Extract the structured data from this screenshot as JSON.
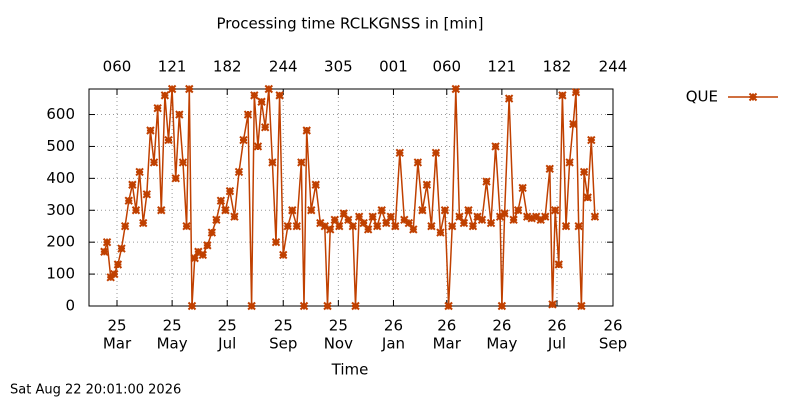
{
  "chart_data": {
    "type": "line",
    "title": "Processing time RCLKGNSS in [min]",
    "x_label": "Time",
    "timestamp": "Sat Aug 22 20:01:00 2026",
    "legend": "top-right",
    "grid": true,
    "xlim": [
      "2025-01-29",
      "2026-09-01"
    ],
    "ylim": [
      0,
      680
    ],
    "yticks": [
      0,
      100,
      200,
      300,
      400,
      500,
      600
    ],
    "xticks": [
      {
        "value": "2025-03-01",
        "label": [
          "25",
          "Mar"
        ]
      },
      {
        "value": "2025-05-01",
        "label": [
          "25",
          "May"
        ]
      },
      {
        "value": "2025-07-01",
        "label": [
          "25",
          "Jul"
        ]
      },
      {
        "value": "2025-09-01",
        "label": [
          "25",
          "Sep"
        ]
      },
      {
        "value": "2025-11-01",
        "label": [
          "25",
          "Nov"
        ]
      },
      {
        "value": "2026-01-01",
        "label": [
          "26",
          "Jan"
        ]
      },
      {
        "value": "2026-03-01",
        "label": [
          "26",
          "Mar"
        ]
      },
      {
        "value": "2026-05-01",
        "label": [
          "26",
          "May"
        ]
      },
      {
        "value": "2026-07-01",
        "label": [
          "26",
          "Jul"
        ]
      },
      {
        "value": "2026-09-01",
        "label": [
          "26",
          "Sep"
        ]
      }
    ],
    "x2ticks": [
      {
        "value": "2025-03-01",
        "label": "060"
      },
      {
        "value": "2025-05-01",
        "label": "121"
      },
      {
        "value": "2025-07-01",
        "label": "182"
      },
      {
        "value": "2025-09-01",
        "label": "244"
      },
      {
        "value": "2025-11-01",
        "label": "305"
      },
      {
        "value": "2026-01-01",
        "label": "001"
      },
      {
        "value": "2026-03-01",
        "label": "060"
      },
      {
        "value": "2026-05-01",
        "label": "121"
      },
      {
        "value": "2026-07-01",
        "label": "182"
      },
      {
        "value": "2026-09-01",
        "label": "244"
      }
    ],
    "x": [
      "2025-02-15",
      "2025-02-18",
      "2025-02-22",
      "2025-02-26",
      "2025-03-02",
      "2025-03-06",
      "2025-03-10",
      "2025-03-14",
      "2025-03-18",
      "2025-03-22",
      "2025-03-26",
      "2025-03-30",
      "2025-04-03",
      "2025-04-07",
      "2025-04-11",
      "2025-04-15",
      "2025-04-19",
      "2025-04-23",
      "2025-04-27",
      "2025-05-01",
      "2025-05-05",
      "2025-05-09",
      "2025-05-13",
      "2025-05-17",
      "2025-05-20",
      "2025-05-23",
      "2025-05-26",
      "2025-05-30",
      "2025-06-04",
      "2025-06-09",
      "2025-06-14",
      "2025-06-19",
      "2025-06-24",
      "2025-06-29",
      "2025-07-04",
      "2025-07-09",
      "2025-07-14",
      "2025-07-19",
      "2025-07-24",
      "2025-07-28",
      "2025-07-31",
      "2025-08-04",
      "2025-08-08",
      "2025-08-12",
      "2025-08-16",
      "2025-08-20",
      "2025-08-24",
      "2025-08-28",
      "2025-09-01",
      "2025-09-06",
      "2025-09-11",
      "2025-09-16",
      "2025-09-21",
      "2025-09-24",
      "2025-09-27",
      "2025-10-02",
      "2025-10-07",
      "2025-10-12",
      "2025-10-17",
      "2025-10-20",
      "2025-10-23",
      "2025-10-28",
      "2025-11-02",
      "2025-11-07",
      "2025-11-12",
      "2025-11-17",
      "2025-11-20",
      "2025-11-24",
      "2025-11-29",
      "2025-12-04",
      "2025-12-09",
      "2025-12-14",
      "2025-12-19",
      "2025-12-24",
      "2025-12-29",
      "2026-01-03",
      "2026-01-08",
      "2026-01-13",
      "2026-01-18",
      "2026-01-23",
      "2026-01-28",
      "2026-02-02",
      "2026-02-07",
      "2026-02-12",
      "2026-02-17",
      "2026-02-22",
      "2026-02-27",
      "2026-03-03",
      "2026-03-07",
      "2026-03-11",
      "2026-03-15",
      "2026-03-20",
      "2026-03-25",
      "2026-03-30",
      "2026-04-04",
      "2026-04-09",
      "2026-04-14",
      "2026-04-19",
      "2026-04-24",
      "2026-04-29",
      "2026-05-01",
      "2026-05-04",
      "2026-05-09",
      "2026-05-14",
      "2026-05-19",
      "2026-05-24",
      "2026-05-29",
      "2026-06-03",
      "2026-06-08",
      "2026-06-13",
      "2026-06-18",
      "2026-06-23",
      "2026-06-26",
      "2026-06-29",
      "2026-07-03",
      "2026-07-07",
      "2026-07-11",
      "2026-07-15",
      "2026-07-19",
      "2026-07-22",
      "2026-07-25",
      "2026-07-28",
      "2026-07-31",
      "2026-08-04",
      "2026-08-08",
      "2026-08-12"
    ],
    "series": [
      {
        "name": "QUE",
        "color": "#c04000",
        "values": [
          170,
          200,
          90,
          100,
          130,
          180,
          250,
          330,
          380,
          300,
          420,
          260,
          350,
          550,
          450,
          620,
          300,
          660,
          520,
          680,
          400,
          600,
          450,
          250,
          680,
          0,
          150,
          170,
          160,
          190,
          230,
          270,
          330,
          300,
          360,
          280,
          420,
          520,
          600,
          0,
          660,
          500,
          640,
          560,
          680,
          450,
          200,
          660,
          160,
          250,
          300,
          250,
          450,
          0,
          550,
          300,
          380,
          260,
          250,
          0,
          240,
          270,
          250,
          290,
          270,
          250,
          0,
          280,
          260,
          240,
          280,
          250,
          300,
          260,
          280,
          250,
          480,
          270,
          260,
          240,
          450,
          300,
          380,
          250,
          480,
          230,
          300,
          0,
          250,
          680,
          280,
          260,
          300,
          250,
          280,
          270,
          390,
          260,
          500,
          280,
          0,
          290,
          650,
          270,
          300,
          370,
          280,
          275,
          280,
          270,
          280,
          430,
          5,
          300,
          130,
          660,
          250,
          450,
          570,
          670,
          250,
          0,
          420,
          340,
          520,
          280
        ]
      }
    ]
  }
}
